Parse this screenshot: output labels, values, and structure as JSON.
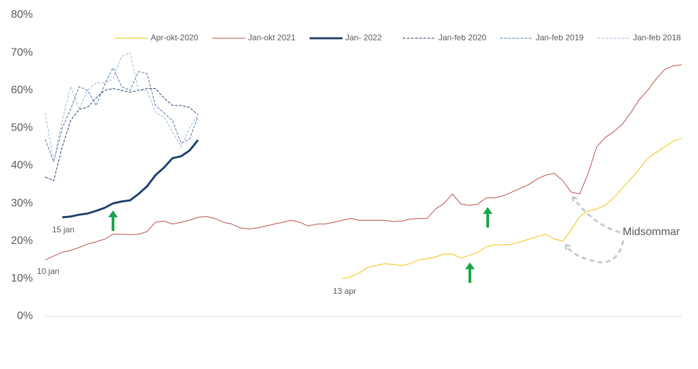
{
  "chart_data": {
    "type": "line",
    "categories": [
      null,
      null,
      null,
      null,
      null,
      null,
      null,
      null,
      null,
      null,
      null,
      null,
      null,
      null,
      null,
      null,
      null,
      null,
      null,
      null,
      null,
      null,
      null,
      null,
      null,
      null,
      null,
      null,
      null,
      null,
      null,
      null,
      null,
      null,
      null,
      null,
      null,
      null,
      null,
      null,
      null,
      null,
      null,
      null,
      null,
      null,
      null,
      null,
      null,
      null,
      null,
      null,
      null,
      null,
      null,
      null,
      null,
      null,
      null,
      null,
      null,
      null,
      null,
      null,
      null,
      null,
      null,
      null,
      null,
      null,
      null,
      null,
      null,
      null,
      null,
      null
    ],
    "ylim": [
      0,
      80
    ],
    "yticks": [
      {
        "value": 0,
        "label": "0%"
      },
      {
        "value": 10,
        "label": "10%"
      },
      {
        "value": 20,
        "label": "20%"
      },
      {
        "value": 30,
        "label": "30%"
      },
      {
        "value": 40,
        "label": "40%"
      },
      {
        "value": 50,
        "label": "50%"
      },
      {
        "value": 60,
        "label": "60%"
      },
      {
        "value": 70,
        "label": "70%"
      },
      {
        "value": 80,
        "label": "80%"
      }
    ],
    "grid": false,
    "legend": "top",
    "series": [
      {
        "name": "Apr-okt-2020",
        "color": "#f2c000",
        "line_width": 1,
        "line_style": "solid",
        "values": [
          null,
          null,
          null,
          null,
          null,
          null,
          null,
          null,
          null,
          null,
          null,
          null,
          null,
          null,
          null,
          null,
          null,
          null,
          null,
          null,
          null,
          null,
          null,
          null,
          null,
          null,
          null,
          null,
          null,
          null,
          null,
          null,
          null,
          null,
          null,
          10,
          10.5,
          11.5,
          13,
          13.5,
          14,
          13.8,
          13.5,
          14,
          15,
          15.3,
          15.8,
          16.5,
          16.5,
          15.5,
          16.2,
          17,
          18.5,
          19,
          19,
          19.2,
          19.8,
          20.5,
          21.2,
          21.8,
          20.5,
          20,
          23,
          26.5,
          28,
          28.5,
          29.5,
          31.5,
          34,
          36.5,
          39,
          42,
          43.5,
          45,
          46.5,
          47.3
        ]
      },
      {
        "name": "Jan-okt 2021",
        "color": "#b94a48",
        "line_width": 1,
        "line_style": "solid",
        "values": [
          15,
          16,
          17,
          17.5,
          18.3,
          19.2,
          19.8,
          20.5,
          21.8,
          21.8,
          21.7,
          21.8,
          22.5,
          25,
          25.3,
          24.5,
          25,
          25.5,
          26.3,
          26.5,
          26,
          25,
          24.5,
          23.5,
          23.2,
          23.5,
          24,
          24.5,
          25,
          25.5,
          25,
          24,
          24.5,
          24.5,
          25,
          25.5,
          26,
          25.5,
          25.5,
          25.5,
          25.5,
          25.2,
          25.3,
          25.8,
          26,
          26,
          28.5,
          30,
          32.5,
          29.8,
          29.5,
          29.8,
          31.5,
          31.5,
          32,
          33,
          34,
          35,
          36.5,
          37.5,
          38,
          36,
          33,
          32.5,
          38,
          45,
          47.5,
          49,
          51,
          54,
          57.5,
          60,
          63,
          65.5,
          66.5,
          66.8
        ]
      },
      {
        "name": "Jan- 2022",
        "color": "#1f3f6e",
        "line_width": 3,
        "line_style": "solid",
        "values": [
          null,
          null,
          26.3,
          26.5,
          27,
          27.3,
          28,
          28.8,
          30,
          30.5,
          30.8,
          32.5,
          34.5,
          37.5,
          39.5,
          42,
          42.5,
          44,
          46.8,
          null,
          null,
          null,
          null,
          null,
          null,
          null,
          null,
          null,
          null,
          null,
          null,
          null,
          null,
          null,
          null,
          null,
          null,
          null,
          null,
          null,
          null,
          null,
          null,
          null,
          null,
          null,
          null,
          null,
          null,
          null,
          null,
          null,
          null,
          null,
          null,
          null,
          null,
          null,
          null,
          null,
          null,
          null,
          null,
          null,
          null,
          null,
          null,
          null,
          null,
          null,
          null,
          null,
          null,
          null,
          null,
          null
        ]
      },
      {
        "name": "Jan-feb 2020",
        "color": "#1f3f6e",
        "line_width": 1,
        "line_style": "dashed",
        "values": [
          37,
          36,
          45,
          52,
          55,
          55.5,
          58,
          60,
          60.5,
          60,
          59.5,
          60,
          60.5,
          60.5,
          58,
          56,
          56,
          55.5,
          53.5,
          null,
          null,
          null,
          null,
          null,
          null,
          null,
          null,
          null,
          null,
          null,
          null,
          null,
          null,
          null,
          null,
          null,
          null,
          null,
          null,
          null,
          null,
          null,
          null,
          null,
          null,
          null,
          null,
          null,
          null,
          null,
          null,
          null,
          null,
          null,
          null,
          null,
          null,
          null,
          null,
          null,
          null,
          null,
          null,
          null,
          null,
          null,
          null,
          null,
          null,
          null,
          null,
          null,
          null,
          null,
          null,
          null
        ]
      },
      {
        "name": "Jan-feb 2019",
        "color": "#4a72a8",
        "line_width": 1,
        "line_style": "dashed",
        "values": [
          47,
          41,
          50,
          55,
          61,
          60,
          56,
          61.5,
          66,
          61,
          60,
          65,
          64.5,
          56,
          54,
          52,
          46,
          47,
          53,
          null,
          null,
          null,
          null,
          null,
          null,
          null,
          null,
          null,
          null,
          null,
          null,
          null,
          null,
          null,
          null,
          null,
          null,
          null,
          null,
          null,
          null,
          null,
          null,
          null,
          null,
          null,
          null,
          null,
          null,
          null,
          null,
          null,
          null,
          null,
          null,
          null,
          null,
          null,
          null,
          null,
          null,
          null,
          null,
          null,
          null,
          null,
          null,
          null,
          null,
          null,
          null,
          null,
          null,
          null,
          null,
          null
        ]
      },
      {
        "name": "Jan-feb 2018",
        "color": "#9db8d9",
        "line_width": 1,
        "line_style": "dashed",
        "values": [
          54,
          41,
          52,
          61,
          55,
          60,
          62,
          62,
          63,
          69,
          70,
          60,
          60,
          54,
          53,
          49,
          45,
          50,
          53.5,
          null,
          null,
          null,
          null,
          null,
          null,
          null,
          null,
          null,
          null,
          null,
          null,
          null,
          null,
          null,
          null,
          null,
          null,
          null,
          null,
          null,
          null,
          null,
          null,
          null,
          null,
          null,
          null,
          null,
          null,
          null,
          null,
          null,
          null,
          null,
          null,
          null,
          null,
          null,
          null,
          null,
          null,
          null,
          null,
          null,
          null,
          null,
          null,
          null,
          null,
          null,
          null,
          null,
          null,
          null,
          null,
          null
        ]
      }
    ],
    "annotations": [
      "15 jan",
      "10 jan",
      "13 apr",
      "Midsommar"
    ]
  }
}
